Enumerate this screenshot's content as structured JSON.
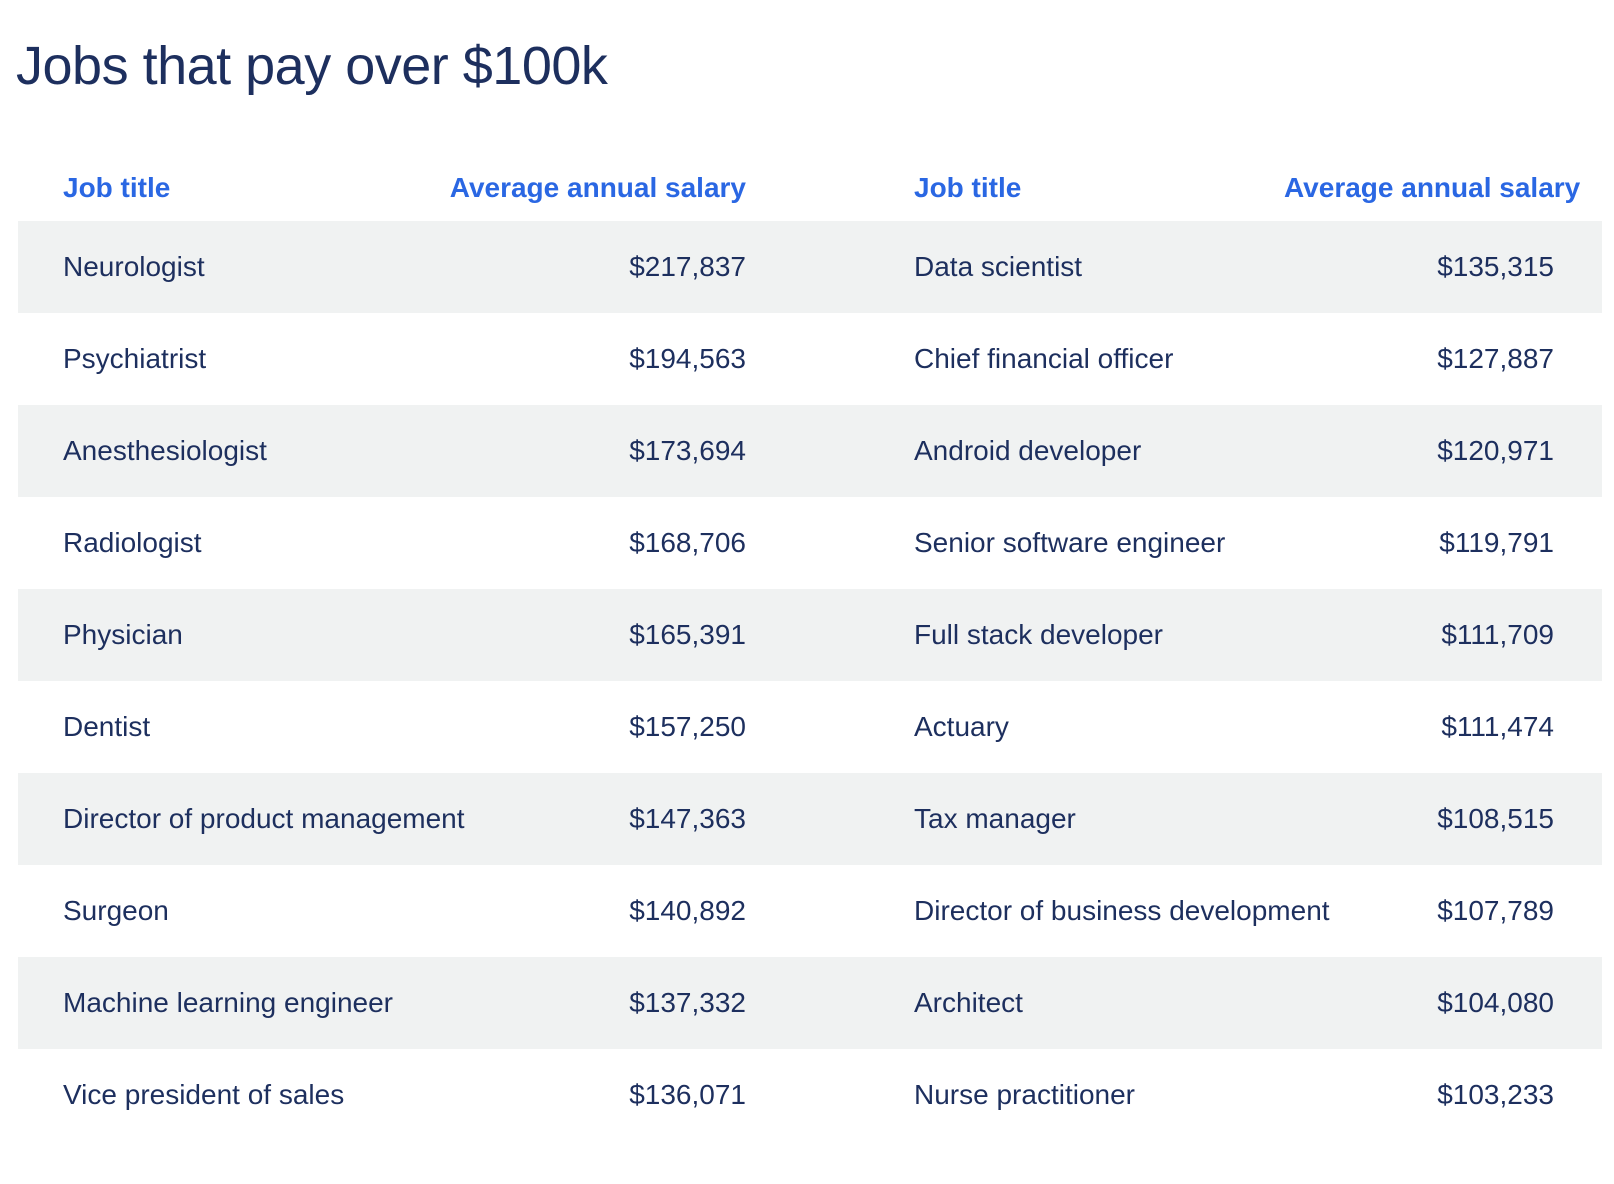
{
  "title": "Jobs that pay over $100k",
  "table": {
    "headers": {
      "left_title": "Job title",
      "left_salary": "Average annual salary",
      "right_title": "Job title",
      "right_salary": "Average annual salary"
    },
    "rows": [
      {
        "left_title": "Neurologist",
        "left_salary": "$217,837",
        "right_title": "Data scientist",
        "right_salary": "$135,315"
      },
      {
        "left_title": "Psychiatrist",
        "left_salary": "$194,563",
        "right_title": "Chief financial officer",
        "right_salary": "$127,887"
      },
      {
        "left_title": "Anesthesiologist",
        "left_salary": "$173,694",
        "right_title": "Android developer",
        "right_salary": "$120,971"
      },
      {
        "left_title": "Radiologist",
        "left_salary": "$168,706",
        "right_title": "Senior software engineer",
        "right_salary": "$119,791"
      },
      {
        "left_title": "Physician",
        "left_salary": "$165,391",
        "right_title": "Full stack developer",
        "right_salary": "$111,709"
      },
      {
        "left_title": "Dentist",
        "left_salary": "$157,250",
        "right_title": "Actuary",
        "right_salary": "$111,474"
      },
      {
        "left_title": "Director of product management",
        "left_salary": "$147,363",
        "right_title": "Tax manager",
        "right_salary": "$108,515"
      },
      {
        "left_title": "Surgeon",
        "left_salary": "$140,892",
        "right_title": "Director of business development",
        "right_salary": "$107,789"
      },
      {
        "left_title": "Machine learning engineer",
        "left_salary": "$137,332",
        "right_title": "Architect",
        "right_salary": "$104,080"
      },
      {
        "left_title": "Vice president of sales",
        "left_salary": "$136,071",
        "right_title": "Nurse practitioner",
        "right_salary": "$103,233"
      }
    ]
  }
}
